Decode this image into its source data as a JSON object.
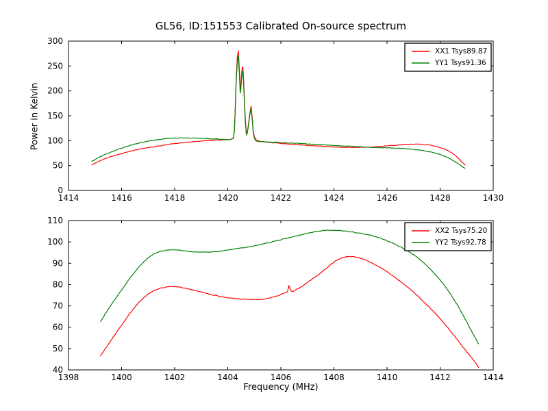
{
  "figure": {
    "background": "#ffffff"
  },
  "chart_data": [
    {
      "type": "line",
      "title": "GL56, ID:151553 Calibrated On-source spectrum",
      "xlabel": "",
      "ylabel": "Power in Kelvin",
      "xlim": [
        1414,
        1430
      ],
      "ylim": [
        0,
        300
      ],
      "xticks": [
        1414,
        1416,
        1418,
        1420,
        1422,
        1424,
        1426,
        1428,
        1430
      ],
      "yticks": [
        0,
        50,
        100,
        150,
        200,
        250,
        300
      ],
      "grid": false,
      "tick_direction": "in",
      "legend_position": "upper right",
      "series": [
        {
          "name": "XX1 Tsys89.87",
          "color": "#ff0000",
          "x": [
            1414.87,
            1415.2,
            1415.6,
            1416.0,
            1416.5,
            1417.0,
            1417.5,
            1418.0,
            1418.5,
            1419.0,
            1419.5,
            1419.9,
            1420.15,
            1420.25,
            1420.32,
            1420.4,
            1420.47,
            1420.52,
            1420.57,
            1420.63,
            1420.7,
            1420.78,
            1420.88,
            1420.96,
            1421.05,
            1421.2,
            1421.5,
            1422.0,
            1422.5,
            1423.0,
            1423.5,
            1424.0,
            1424.5,
            1425.0,
            1425.5,
            1426.0,
            1426.5,
            1426.9,
            1427.3,
            1427.7,
            1428.0,
            1428.3,
            1428.6,
            1428.95
          ],
          "y": [
            51,
            60,
            68,
            74,
            81,
            86,
            90,
            94,
            97,
            99,
            101,
            102,
            103.5,
            120,
            230,
            281,
            205,
            232,
            248,
            180,
            116,
            133,
            169,
            118,
            103,
            99,
            97,
            94.5,
            92.5,
            90.5,
            89,
            87.5,
            86.5,
            86.5,
            87.5,
            89.5,
            91.5,
            93,
            92.5,
            90,
            86,
            80,
            69,
            50
          ]
        },
        {
          "name": "YY1 Tsys91.36",
          "color": "#008000",
          "x": [
            1414.87,
            1415.2,
            1415.6,
            1416.0,
            1416.5,
            1417.0,
            1417.5,
            1418.0,
            1418.5,
            1419.0,
            1419.5,
            1419.9,
            1420.15,
            1420.25,
            1420.32,
            1420.4,
            1420.47,
            1420.52,
            1420.57,
            1420.63,
            1420.7,
            1420.78,
            1420.88,
            1420.96,
            1421.05,
            1421.2,
            1421.5,
            1422.0,
            1422.5,
            1423.0,
            1423.5,
            1424.0,
            1424.5,
            1425.0,
            1425.5,
            1426.0,
            1426.5,
            1427.0,
            1427.4,
            1427.8,
            1428.1,
            1428.4,
            1428.7,
            1428.95
          ],
          "y": [
            58,
            68,
            77,
            85,
            93,
            99,
            103,
            105,
            105.5,
            104.5,
            103.5,
            102.5,
            103,
            118,
            222,
            271,
            196,
            224,
            240,
            172,
            112,
            130,
            165,
            115,
            100.5,
            98.5,
            97.5,
            96,
            95,
            93.5,
            92,
            90.5,
            89,
            87.5,
            86.5,
            85.5,
            84.5,
            82.5,
            79.5,
            75,
            70,
            63,
            53,
            44
          ]
        }
      ]
    },
    {
      "type": "line",
      "title": "",
      "xlabel": "Frequency (MHz)",
      "ylabel": "",
      "xlim": [
        1398,
        1414
      ],
      "ylim": [
        40,
        110
      ],
      "xticks": [
        1398,
        1400,
        1402,
        1404,
        1406,
        1408,
        1410,
        1412,
        1414
      ],
      "yticks": [
        40,
        50,
        60,
        70,
        80,
        90,
        100,
        110
      ],
      "grid": false,
      "tick_direction": "in",
      "legend_position": "upper right",
      "series": [
        {
          "name": "XX2 Tsys75.20",
          "color": "#ff0000",
          "x": [
            1399.2,
            1399.5,
            1400.0,
            1400.5,
            1401.0,
            1401.4,
            1401.8,
            1402.2,
            1402.6,
            1403.0,
            1403.5,
            1404.0,
            1404.5,
            1405.0,
            1405.4,
            1405.8,
            1406.1,
            1406.25,
            1406.3,
            1406.4,
            1406.7,
            1407.0,
            1407.5,
            1408.0,
            1408.3,
            1408.6,
            1408.9,
            1409.2,
            1409.6,
            1410.0,
            1410.5,
            1411.0,
            1411.5,
            1412.0,
            1412.5,
            1413.0,
            1413.3,
            1413.45
          ],
          "y": [
            46.5,
            52,
            61,
            69.5,
            75.5,
            78,
            79,
            78.7,
            77.8,
            76.5,
            75,
            73.8,
            73.2,
            73,
            73.3,
            74.5,
            75.8,
            76.5,
            79.5,
            76.8,
            78.5,
            81,
            85.5,
            90.5,
            92.5,
            93.2,
            92.7,
            91.5,
            89,
            86,
            81.5,
            76.5,
            70.5,
            64,
            56.5,
            48.5,
            44,
            41
          ]
        },
        {
          "name": "YY2 Tsys92.78",
          "color": "#008000",
          "x": [
            1399.2,
            1399.5,
            1400.0,
            1400.5,
            1401.0,
            1401.4,
            1401.8,
            1402.2,
            1402.6,
            1403.0,
            1403.4,
            1403.8,
            1404.2,
            1404.6,
            1405.0,
            1405.5,
            1406.0,
            1406.5,
            1407.0,
            1407.4,
            1407.8,
            1408.2,
            1408.6,
            1409.0,
            1409.4,
            1409.8,
            1410.2,
            1410.6,
            1411.0,
            1411.4,
            1411.8,
            1412.2,
            1412.6,
            1413.0,
            1413.3,
            1413.45
          ],
          "y": [
            62.5,
            68.5,
            77.5,
            86,
            92.5,
            95.3,
            96.2,
            96,
            95.5,
            95.2,
            95.3,
            95.8,
            96.5,
            97.3,
            98.2,
            99.5,
            101,
            102.5,
            104,
            105,
            105.5,
            105.3,
            104.8,
            104,
            103,
            101.5,
            99.5,
            97,
            94,
            90,
            85,
            79,
            71.5,
            62.5,
            55.5,
            52
          ]
        }
      ]
    }
  ]
}
